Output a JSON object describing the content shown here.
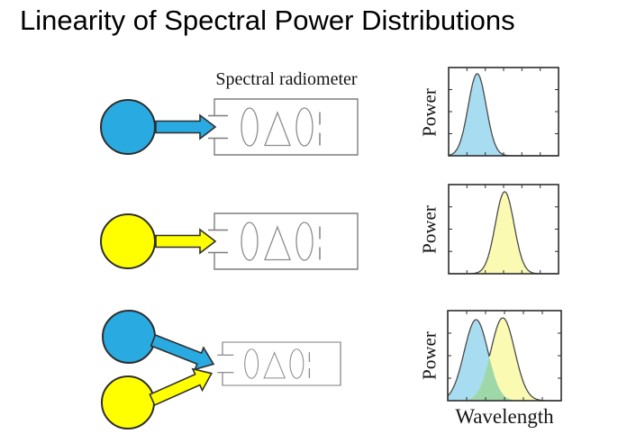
{
  "title": "Linearity of Spectral Power Distributions",
  "radiometer": {
    "label": "Spectral radiometer"
  },
  "rows": [
    {
      "sources": [
        "blue"
      ],
      "measures": "blue source spectrum"
    },
    {
      "sources": [
        "yellow"
      ],
      "measures": "yellow source spectrum"
    },
    {
      "sources": [
        "blue",
        "yellow"
      ],
      "measures": "sum of blue and yellow spectra"
    }
  ],
  "colors": {
    "source_blue": "#29ABE2",
    "source_yellow": "#FFFF00",
    "fill_blue": "#A8DCF0",
    "fill_yellow": "#FAFAB2",
    "overlap_green": "#9FD8A8",
    "outline_dark": "#4a4a4a"
  },
  "chart_data": [
    {
      "type": "area",
      "title": "Spectrum of blue source",
      "ylabel": "Power",
      "xlabel": "",
      "x_range": [
        0,
        1
      ],
      "grid": false,
      "series": [
        {
          "name": "blue-spectrum",
          "fill": "#A8DCF0",
          "peak_center": 0.26,
          "peak_sigma": 0.082,
          "peak_height": 0.93
        }
      ]
    },
    {
      "type": "area",
      "title": "Spectrum of yellow source",
      "ylabel": "Power",
      "xlabel": "",
      "x_range": [
        0,
        1
      ],
      "grid": false,
      "series": [
        {
          "name": "yellow-spectrum",
          "fill": "#FAFAB2",
          "peak_center": 0.51,
          "peak_sigma": 0.085,
          "peak_height": 0.92
        }
      ]
    },
    {
      "type": "area",
      "title": "Spectrum of combined blue + yellow sources",
      "ylabel": "Power",
      "xlabel": "Wavelength",
      "x_range": [
        0,
        1
      ],
      "grid": false,
      "overlap_fill": "#9FD8A8",
      "series": [
        {
          "name": "blue-spectrum",
          "fill": "#A8DCF0",
          "peak_center": 0.25,
          "peak_sigma": 0.105,
          "peak_height": 0.9
        },
        {
          "name": "yellow-spectrum",
          "fill": "#FAFAB2",
          "peak_center": 0.485,
          "peak_sigma": 0.105,
          "peak_height": 0.92
        }
      ]
    }
  ]
}
